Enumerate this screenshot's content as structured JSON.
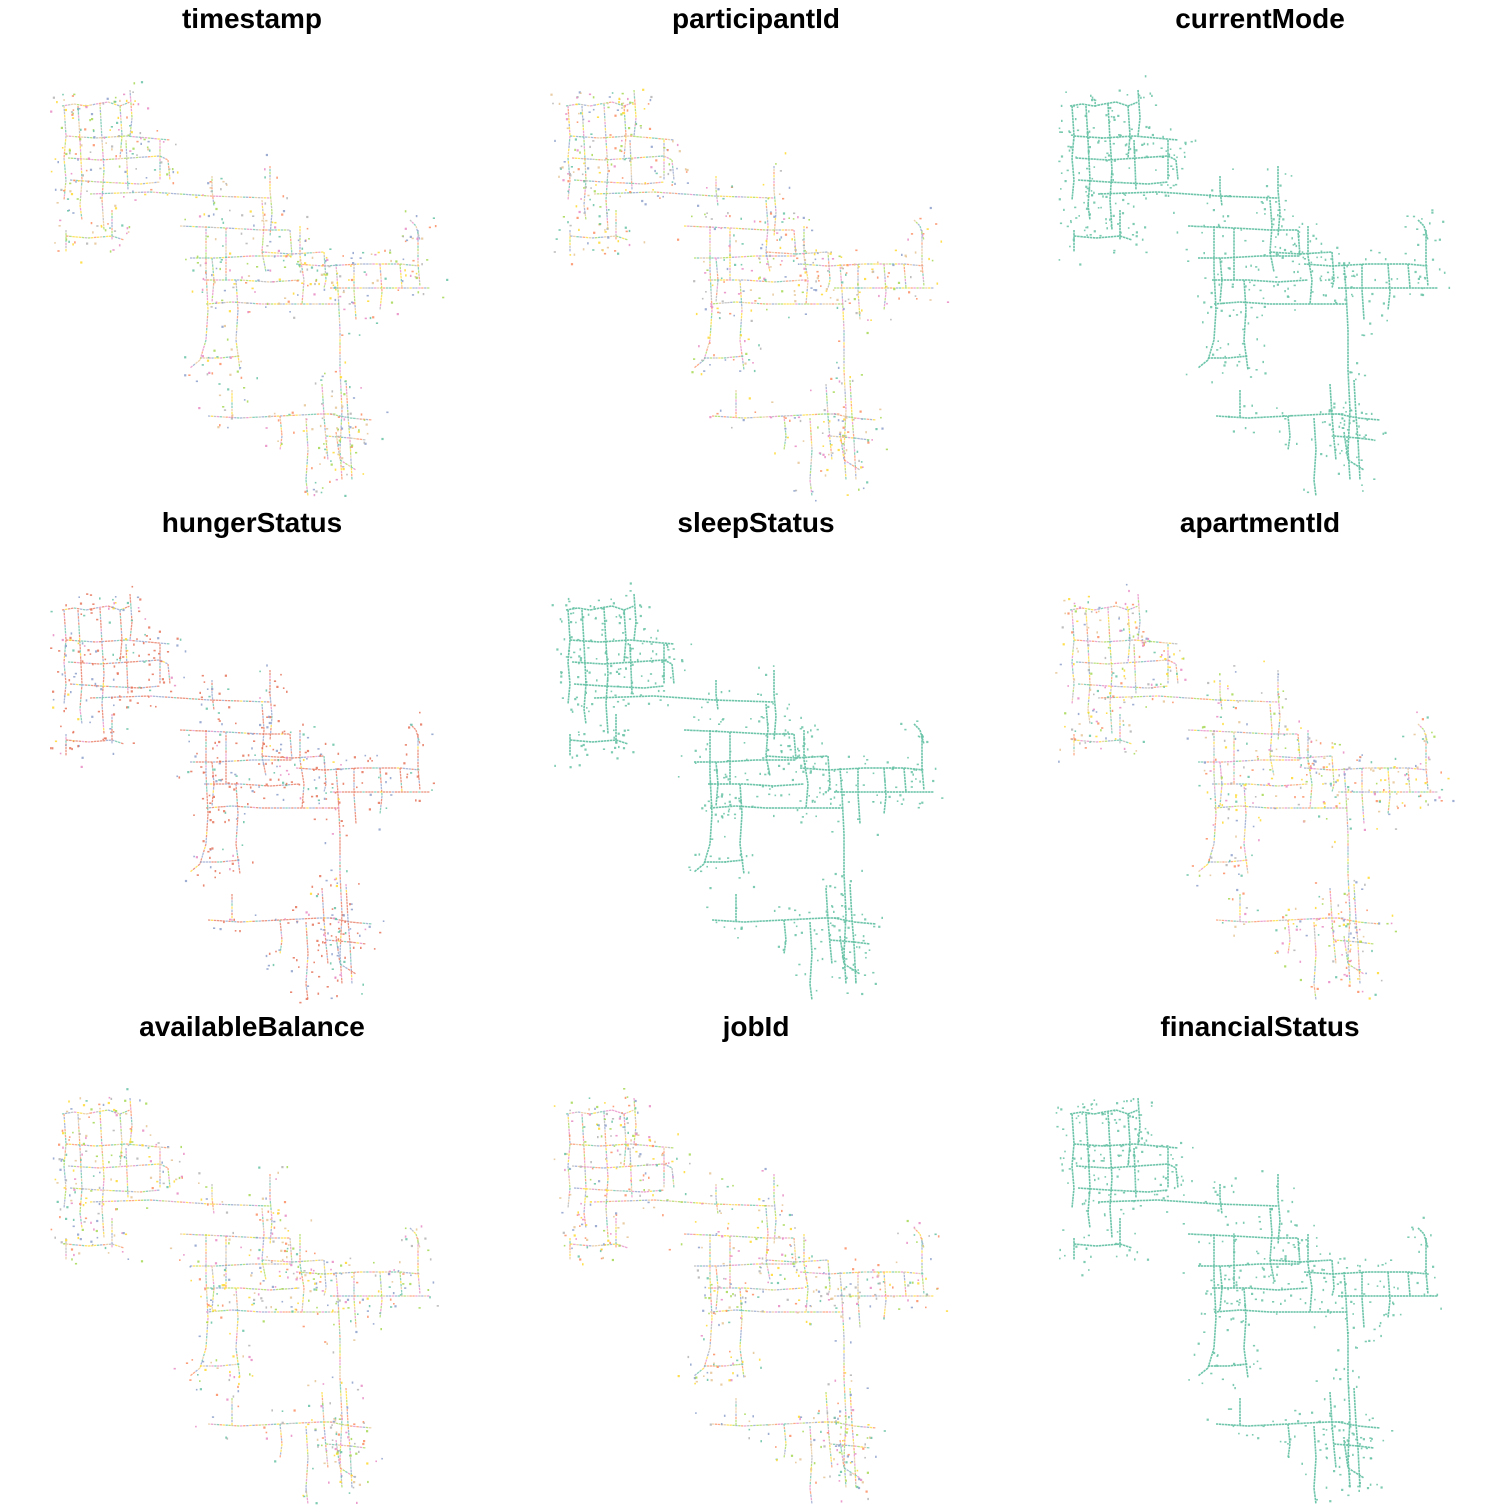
{
  "figure": {
    "panels": [
      {
        "title": "timestamp",
        "palette": "multi"
      },
      {
        "title": "participantId",
        "palette": "multi"
      },
      {
        "title": "currentMode",
        "palette": "single"
      },
      {
        "title": "hungerStatus",
        "palette": "hunger"
      },
      {
        "title": "sleepStatus",
        "palette": "single"
      },
      {
        "title": "apartmentId",
        "palette": "multi"
      },
      {
        "title": "availableBalance",
        "palette": "multi"
      },
      {
        "title": "jobId",
        "palette": "multi"
      },
      {
        "title": "financialStatus",
        "palette": "single"
      }
    ]
  },
  "colors": {
    "single": "#66C2A5",
    "multi": [
      "#66C2A5",
      "#FC8D62",
      "#8DA0CB",
      "#E78AC3",
      "#A6D854",
      "#FFD92F",
      "#E5C494",
      "#B3B3B3"
    ],
    "hunger": [
      "#E5735A",
      "#8DA0CB",
      "#66C2A5",
      "#E78AC3",
      "#FFD92F"
    ]
  }
}
